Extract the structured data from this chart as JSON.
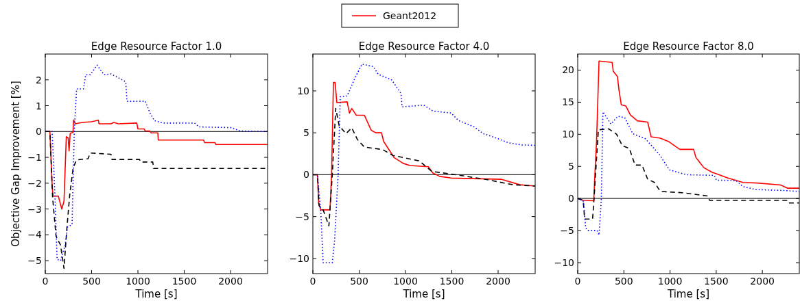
{
  "chart_data": [
    {
      "type": "line",
      "title": "Edge Resource Factor 1.0",
      "xlabel": "Time [s]",
      "ylabel": "Objective Gap Improvement [%]",
      "xlim": [
        0,
        2400
      ],
      "xticks": [
        0,
        500,
        1000,
        1500,
        2000
      ],
      "ylim": [
        -5.5,
        3
      ],
      "yticks": [
        -5,
        -4,
        -3,
        -2,
        -1,
        0,
        1,
        2
      ],
      "legend": "top",
      "ref_lines": [
        {
          "axis": "y",
          "value": 0,
          "color": "#333333"
        }
      ],
      "series": [
        {
          "name": "Geant2012",
          "color": "#ff0000",
          "line_style": "solid",
          "x": [
            0,
            50,
            74,
            84,
            141,
            178,
            202,
            227,
            247,
            257,
            269,
            299,
            306,
            323,
            400,
            500,
            573,
            580,
            709,
            740,
            790,
            988,
            1000,
            1067,
            1080,
            1129,
            1140,
            1215,
            1220,
            1709,
            1720,
            1833,
            1840,
            2400
          ],
          "values": [
            0,
            0,
            -2.1,
            -2.5,
            -2.5,
            -3.0,
            -2.7,
            -0.2,
            -0.25,
            -0.75,
            -0.07,
            -0.03,
            0.45,
            0.3,
            0.35,
            0.38,
            0.44,
            0.3,
            0.3,
            0.35,
            0.3,
            0.33,
            0.1,
            0.1,
            0.02,
            0.02,
            -0.05,
            -0.05,
            -0.33,
            -0.33,
            -0.43,
            -0.43,
            -0.5,
            -0.5
          ]
        },
        {
          "color": "#000000",
          "line_style": "dashed",
          "x": [
            0,
            50,
            79,
            116,
            165,
            202,
            232,
            264,
            301,
            338,
            462,
            486,
            709,
            720,
            1017,
            1030,
            1160,
            1170,
            2400
          ],
          "values": [
            0,
            0,
            -2.55,
            -4.05,
            -4.4,
            -5.3,
            -3.8,
            -2.45,
            -1.4,
            -1.1,
            -1.05,
            -0.83,
            -0.88,
            -1.08,
            -1.08,
            -1.18,
            -1.18,
            -1.43,
            -1.43
          ]
        },
        {
          "color": "#0000ff",
          "line_style": "dotted",
          "x": [
            0,
            74,
            104,
            128,
            165,
            215,
            240,
            289,
            313,
            338,
            412,
            437,
            486,
            560,
            634,
            709,
            832,
            869,
            882,
            1080,
            1129,
            1178,
            1265,
            1610,
            1660,
            2006,
            2105,
            2400
          ],
          "values": [
            0,
            0,
            -2.45,
            -4.95,
            -5.0,
            -4.4,
            -3.7,
            -3.6,
            0,
            1.65,
            1.65,
            2.2,
            2.2,
            2.57,
            2.2,
            2.23,
            2.0,
            1.92,
            1.17,
            1.17,
            0.73,
            0.42,
            0.33,
            0.33,
            0.18,
            0.15,
            0.02,
            0
          ]
        }
      ]
    },
    {
      "type": "line",
      "title": "Edge Resource Factor 4.0",
      "xlabel": "Time [s]",
      "xlim": [
        0,
        2400
      ],
      "xticks": [
        0,
        500,
        1000,
        1500,
        2000
      ],
      "ylim": [
        -11.8,
        14.4
      ],
      "yticks": [
        -10,
        -5,
        0,
        5,
        10
      ],
      "ref_lines": [
        {
          "axis": "y",
          "value": 0,
          "color": "#333333"
        }
      ],
      "series": [
        {
          "color": "#ff0000",
          "line_style": "solid",
          "x": [
            0,
            50,
            62,
            86,
            185,
            202,
            222,
            240,
            259,
            370,
            395,
            420,
            469,
            556,
            630,
            679,
            741,
            765,
            815,
            877,
            975,
            1049,
            1247,
            1296,
            1370,
            1494,
            2037,
            2235,
            2400
          ],
          "values": [
            0,
            0,
            -3.4,
            -4.2,
            -4.2,
            0,
            11.0,
            11.0,
            8.6,
            8.7,
            7.35,
            7.9,
            7.1,
            7.1,
            5.3,
            5.0,
            5.0,
            3.95,
            3.1,
            2.05,
            1.35,
            1.1,
            0.95,
            0.2,
            -0.2,
            -0.4,
            -0.55,
            -1.2,
            -1.35
          ]
        },
        {
          "color": "#000000",
          "line_style": "dashed",
          "x": [
            0,
            50,
            67,
            111,
            173,
            210,
            247,
            284,
            358,
            420,
            481,
            556,
            753,
            864,
            1148,
            1284,
            1543,
            1864,
            2160,
            2400
          ],
          "values": [
            0,
            0,
            -3.7,
            -4.2,
            -6.1,
            0,
            7.9,
            5.85,
            4.9,
            5.6,
            4.2,
            3.3,
            3.0,
            2.3,
            1.65,
            0.4,
            0,
            -0.55,
            -1.2,
            -1.35
          ]
        },
        {
          "color": "#0000ff",
          "line_style": "dotted",
          "x": [
            0,
            50,
            86,
            111,
            210,
            235,
            272,
            296,
            370,
            457,
            531,
            654,
            704,
            852,
            951,
            963,
            1198,
            1296,
            1494,
            1568,
            1741,
            1840,
            1988,
            2111,
            2259,
            2400
          ],
          "values": [
            0,
            0,
            -4.5,
            -10.5,
            -10.5,
            -7.8,
            -0.1,
            9.3,
            9.4,
            11.6,
            13.2,
            12.9,
            12.0,
            11.3,
            9.7,
            8.1,
            8.3,
            7.6,
            7.35,
            6.5,
            5.7,
            4.9,
            4.35,
            3.8,
            3.55,
            3.5
          ]
        }
      ]
    },
    {
      "type": "line",
      "title": "Edge Resource Factor 8.0",
      "xlabel": "Time [s]",
      "xlim": [
        0,
        2400
      ],
      "xticks": [
        0,
        500,
        1000,
        1500,
        2000
      ],
      "ylim": [
        -11.7,
        22.5
      ],
      "yticks": [
        -10,
        -5,
        0,
        5,
        10,
        15,
        20
      ],
      "ref_lines": [
        {
          "axis": "y",
          "value": 0,
          "color": "#333333"
        }
      ],
      "series": [
        {
          "color": "#ff0000",
          "line_style": "solid",
          "x": [
            0,
            60,
            174,
            186,
            204,
            231,
            373,
            385,
            430,
            447,
            472,
            522,
            571,
            646,
            758,
            795,
            894,
            981,
            1106,
            1255,
            1280,
            1366,
            1453,
            1627,
            1789,
            1950,
            2199,
            2273,
            2400
          ],
          "values": [
            0,
            -0.3,
            -0.35,
            3.7,
            8.9,
            21.4,
            21.2,
            19.8,
            19.0,
            16.9,
            14.6,
            14.4,
            13.0,
            12.1,
            11.9,
            9.6,
            9.4,
            8.9,
            7.65,
            7.65,
            6.4,
            4.8,
            4.1,
            3.2,
            2.5,
            2.4,
            2.1,
            1.6,
            1.6
          ]
        },
        {
          "color": "#000000",
          "line_style": "dashed",
          "x": [
            0,
            60,
            75,
            161,
            174,
            224,
            335,
            422,
            484,
            559,
            621,
            696,
            758,
            832,
            894,
            1130,
            1404,
            1429,
            2273,
            2286,
            2400
          ],
          "values": [
            0,
            -0.3,
            -3.2,
            -3.2,
            -0.7,
            10.7,
            10.85,
            10.0,
            8.2,
            7.8,
            5.2,
            5.2,
            3.0,
            2.5,
            1.1,
            0.9,
            0.4,
            -0.3,
            -0.3,
            -0.7,
            -0.7
          ]
        },
        {
          "color": "#0000ff",
          "line_style": "dotted",
          "x": [
            0,
            60,
            87,
            112,
            211,
            231,
            256,
            273,
            360,
            435,
            509,
            596,
            733,
            882,
            994,
            1180,
            1478,
            1503,
            1714,
            1789,
            1925,
            2223,
            2400
          ],
          "values": [
            0,
            -0.3,
            -4.6,
            -5.0,
            -5.0,
            -5.7,
            0,
            13.5,
            11.6,
            12.8,
            12.6,
            10.1,
            9.3,
            6.9,
            4.45,
            3.7,
            3.6,
            2.85,
            2.8,
            1.85,
            1.4,
            1.25,
            1.1
          ]
        }
      ]
    }
  ]
}
